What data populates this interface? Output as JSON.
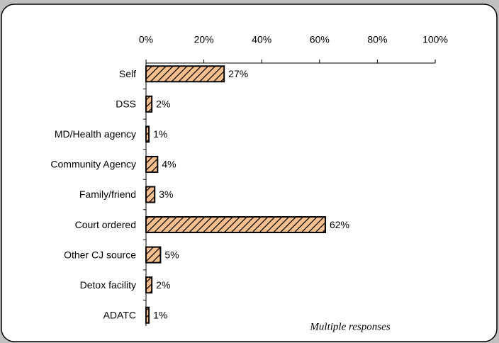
{
  "chart_data": {
    "type": "bar",
    "orientation": "horizontal",
    "categories": [
      "Self",
      "DSS",
      "MD/Health agency",
      "Community Agency",
      "Family/friend",
      "Court ordered",
      "Other CJ source",
      "Detox facility",
      "ADATC"
    ],
    "values": [
      27,
      2,
      1,
      4,
      3,
      62,
      5,
      2,
      1
    ],
    "value_labels": [
      "27%",
      "2%",
      "1%",
      "4%",
      "3%",
      "62%",
      "5%",
      "2%",
      "1%"
    ],
    "color": "#f9c08f",
    "xlim": [
      0,
      100
    ],
    "xticks": [
      {
        "value": 0,
        "label": "0%"
      },
      {
        "value": 20,
        "label": "20%"
      },
      {
        "value": 40,
        "label": "40%"
      },
      {
        "value": 60,
        "label": "60%"
      },
      {
        "value": 80,
        "label": "80%"
      },
      {
        "value": 100,
        "label": "100%"
      }
    ],
    "annotation": "Multiple responses"
  }
}
